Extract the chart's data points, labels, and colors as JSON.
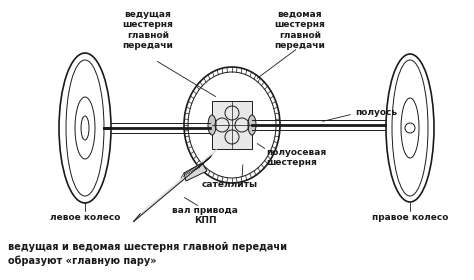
{
  "bg_color": "#ffffff",
  "line_color": "#1a1a1a",
  "caption_line1": "ведущая и ведомая шестерня главной передачи",
  "caption_line2": "образуют «главную пару»",
  "label_left_wheel": "левое колесо",
  "label_right_wheel": "правое колесо",
  "label_drive_gear": "ведущая\nшестерня\nглавной\nпередачи",
  "label_driven_gear": "ведомая\nшестерня\nглавной\nпередачи",
  "label_halfshaft": "полуось",
  "label_side_gear": "полуосевая\nшестерня",
  "label_satellites": "сателлиты",
  "label_drive_shaft": "вал привода\nКПП",
  "fig_width": 4.74,
  "fig_height": 2.8,
  "dpi": 100
}
